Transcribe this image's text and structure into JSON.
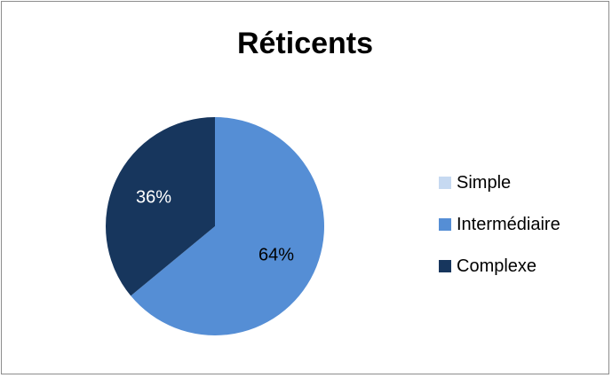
{
  "chart_data": {
    "type": "pie",
    "title": "Réticents",
    "categories": [
      "Simple",
      "Intermédiaire",
      "Complexe"
    ],
    "values": [
      0,
      64,
      36
    ],
    "data_labels": [
      "",
      "64%",
      "36%"
    ],
    "colors": [
      "#c6d9f1",
      "#558ed5",
      "#17365d"
    ],
    "legend_position": "right"
  }
}
